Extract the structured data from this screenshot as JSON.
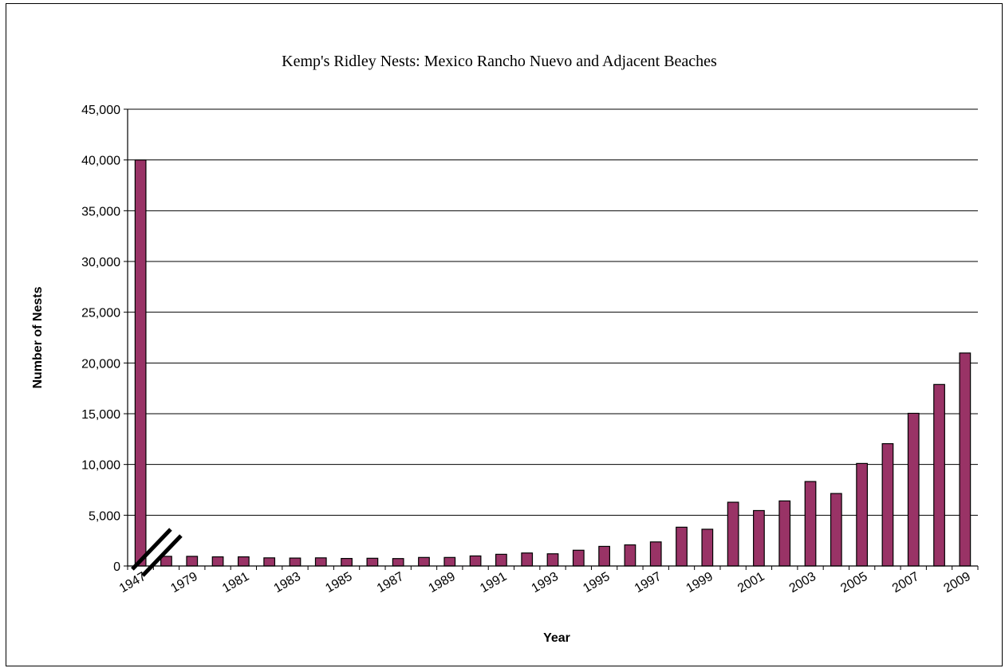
{
  "chart_data": {
    "type": "bar",
    "title": "Kemp's Ridley Nests: Mexico Rancho Nuevo and Adjacent Beaches",
    "xlabel": "Year",
    "ylabel": "Number of Nests",
    "ylim": [
      0,
      45000
    ],
    "yticks": [
      0,
      5000,
      10000,
      15000,
      20000,
      25000,
      30000,
      35000,
      40000,
      45000
    ],
    "ytick_labels": [
      "0",
      "5,000",
      "10,000",
      "15,000",
      "20,000",
      "25,000",
      "30,000",
      "35,000",
      "40,000",
      "45,000"
    ],
    "grid": true,
    "legend": "none",
    "bar_color": "#993366",
    "categories": [
      "1947",
      "1978",
      "1979",
      "1980",
      "1981",
      "1982",
      "1983",
      "1984",
      "1985",
      "1986",
      "1987",
      "1988",
      "1989",
      "1990",
      "1991",
      "1992",
      "1993",
      "1994",
      "1995",
      "1996",
      "1997",
      "1998",
      "1999",
      "2000",
      "2001",
      "2002",
      "2003",
      "2004",
      "2005",
      "2006",
      "2007",
      "2008",
      "2009"
    ],
    "x_tick_labels": [
      "1947",
      "",
      "1979",
      "",
      "1981",
      "",
      "1983",
      "",
      "1985",
      "",
      "1987",
      "",
      "1989",
      "",
      "1991",
      "",
      "1993",
      "",
      "1995",
      "",
      "1997",
      "",
      "1999",
      "",
      "2001",
      "",
      "2003",
      "",
      "2005",
      "",
      "2007",
      "",
      "2009"
    ],
    "values": [
      40000,
      950,
      950,
      900,
      900,
      800,
      780,
      800,
      740,
      760,
      730,
      840,
      840,
      990,
      1150,
      1280,
      1200,
      1550,
      1930,
      2080,
      2370,
      3820,
      3620,
      6280,
      5460,
      6410,
      8320,
      7140,
      10100,
      12050,
      15040,
      17880,
      20980
    ],
    "axis_break": "between 1947 and 1978"
  }
}
